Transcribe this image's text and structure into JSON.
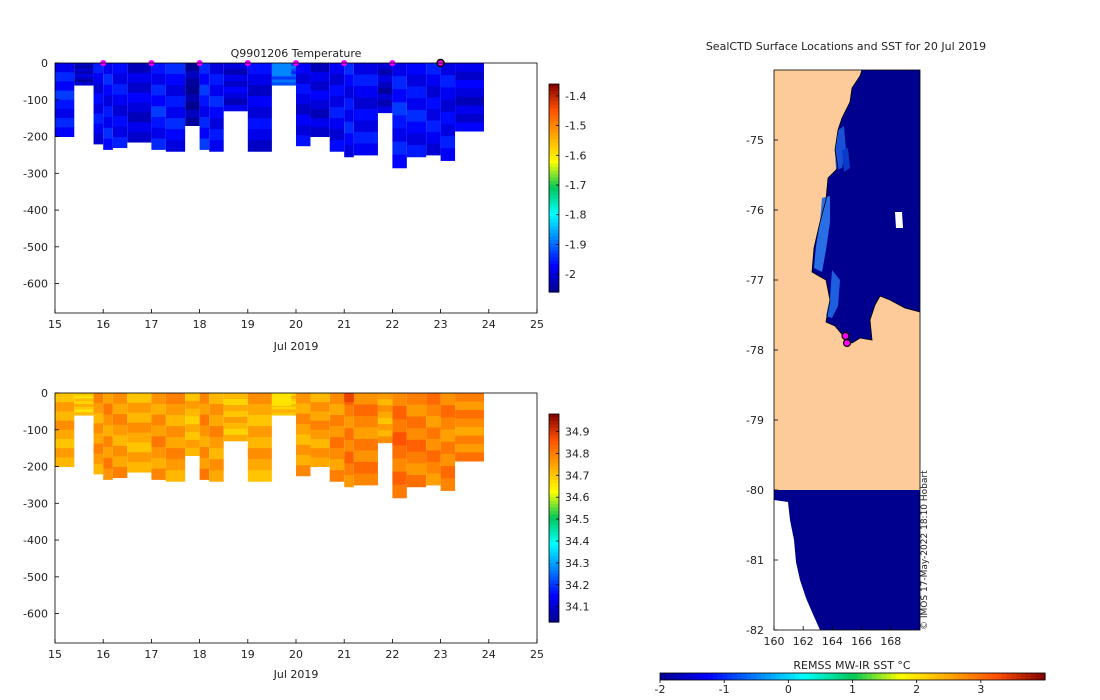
{
  "chart_data": [
    {
      "type": "heatmap",
      "title": "Q9901206  Temperature",
      "xlabel": "Jul 2019",
      "xlim": [
        15,
        25
      ],
      "x_ticks": [
        "15",
        "16",
        "17",
        "18",
        "19",
        "20",
        "21",
        "22",
        "23",
        "24",
        "25"
      ],
      "ylim": [
        -680,
        0
      ],
      "y_ticks": [
        "0",
        "-100",
        "-200",
        "-300",
        "-400",
        "-500",
        "-600"
      ],
      "clim": [
        -2.06,
        -1.36
      ],
      "colorbar_ticks": [
        "-1.4",
        "-1.5",
        "-1.6",
        "-1.7",
        "-1.8",
        "-1.9",
        "-2"
      ],
      "profiles": [
        {
          "t": 15.0,
          "w": 0.4,
          "bottom": -200,
          "v": -1.96
        },
        {
          "t": 15.4,
          "w": 0.4,
          "bottom": -60,
          "v": -2.02
        },
        {
          "t": 15.8,
          "w": 0.2,
          "bottom": -220,
          "v": -1.98
        },
        {
          "t": 16.0,
          "w": 0.2,
          "bottom": -235,
          "v": -1.97
        },
        {
          "t": 16.2,
          "w": 0.3,
          "bottom": -230,
          "v": -1.98
        },
        {
          "t": 16.5,
          "w": 0.5,
          "bottom": -215,
          "v": -2.0
        },
        {
          "t": 17.0,
          "w": 0.3,
          "bottom": -235,
          "v": -1.96
        },
        {
          "t": 17.3,
          "w": 0.4,
          "bottom": -240,
          "v": -1.97
        },
        {
          "t": 17.7,
          "w": 0.3,
          "bottom": -170,
          "v": -2.05
        },
        {
          "t": 18.0,
          "w": 0.2,
          "bottom": -235,
          "v": -1.96
        },
        {
          "t": 18.2,
          "w": 0.3,
          "bottom": -240,
          "v": -1.97
        },
        {
          "t": 18.5,
          "w": 0.5,
          "bottom": -130,
          "v": -2.0
        },
        {
          "t": 19.0,
          "w": 0.5,
          "bottom": -240,
          "v": -1.99
        },
        {
          "t": 19.5,
          "w": 0.5,
          "bottom": -60,
          "v": -1.92
        },
        {
          "t": 20.0,
          "w": 0.3,
          "bottom": -225,
          "v": -1.99
        },
        {
          "t": 20.3,
          "w": 0.4,
          "bottom": -200,
          "v": -2.0
        },
        {
          "t": 20.7,
          "w": 0.3,
          "bottom": -240,
          "v": -1.98
        },
        {
          "t": 21.0,
          "w": 0.2,
          "bottom": -255,
          "v": -1.97
        },
        {
          "t": 21.2,
          "w": 0.5,
          "bottom": -250,
          "v": -1.98
        },
        {
          "t": 21.7,
          "w": 0.3,
          "bottom": -135,
          "v": -2.02
        },
        {
          "t": 22.0,
          "w": 0.3,
          "bottom": -285,
          "v": -1.96
        },
        {
          "t": 22.3,
          "w": 0.4,
          "bottom": -255,
          "v": -1.97
        },
        {
          "t": 22.7,
          "w": 0.3,
          "bottom": -250,
          "v": -1.98
        },
        {
          "t": 23.0,
          "w": 0.3,
          "bottom": -265,
          "v": -1.98
        },
        {
          "t": 23.3,
          "w": 0.6,
          "bottom": -185,
          "v": -2.0
        }
      ],
      "special_cells": [
        {
          "t": 19.5,
          "w": 0.4,
          "top": 0,
          "bottom": -35,
          "v": -1.88
        }
      ],
      "surface_markers": [
        16,
        17,
        18,
        19,
        20,
        21,
        22
      ],
      "current_marker": 23
    },
    {
      "type": "heatmap",
      "title": "",
      "xlabel": "Jul 2019",
      "xlim": [
        15,
        25
      ],
      "x_ticks": [
        "15",
        "16",
        "17",
        "18",
        "19",
        "20",
        "21",
        "22",
        "23",
        "24",
        "25"
      ],
      "ylim": [
        -680,
        0
      ],
      "y_ticks": [
        "0",
        "-100",
        "-200",
        "-300",
        "-400",
        "-500",
        "-600"
      ],
      "clim": [
        34.03,
        34.98
      ],
      "colorbar_ticks": [
        "34.9",
        "34.8",
        "34.7",
        "34.6",
        "34.5",
        "34.4",
        "34.3",
        "34.2",
        "34.1"
      ],
      "profiles": [
        {
          "t": 15.0,
          "w": 0.4,
          "bottom": -200,
          "v": 34.74
        },
        {
          "t": 15.4,
          "w": 0.4,
          "bottom": -60,
          "v": 34.7
        },
        {
          "t": 15.8,
          "w": 0.2,
          "bottom": -220,
          "v": 34.76
        },
        {
          "t": 16.0,
          "w": 0.2,
          "bottom": -235,
          "v": 34.77
        },
        {
          "t": 16.2,
          "w": 0.3,
          "bottom": -230,
          "v": 34.76
        },
        {
          "t": 16.5,
          "w": 0.5,
          "bottom": -215,
          "v": 34.74
        },
        {
          "t": 17.0,
          "w": 0.3,
          "bottom": -235,
          "v": 34.77
        },
        {
          "t": 17.3,
          "w": 0.4,
          "bottom": -240,
          "v": 34.76
        },
        {
          "t": 17.7,
          "w": 0.3,
          "bottom": -170,
          "v": 34.72
        },
        {
          "t": 18.0,
          "w": 0.2,
          "bottom": -235,
          "v": 34.77
        },
        {
          "t": 18.2,
          "w": 0.3,
          "bottom": -240,
          "v": 34.76
        },
        {
          "t": 18.5,
          "w": 0.5,
          "bottom": -130,
          "v": 34.72
        },
        {
          "t": 19.0,
          "w": 0.5,
          "bottom": -240,
          "v": 34.74
        },
        {
          "t": 19.5,
          "w": 0.5,
          "bottom": -60,
          "v": 34.7
        },
        {
          "t": 20.0,
          "w": 0.3,
          "bottom": -225,
          "v": 34.75
        },
        {
          "t": 20.3,
          "w": 0.4,
          "bottom": -200,
          "v": 34.76
        },
        {
          "t": 20.7,
          "w": 0.3,
          "bottom": -240,
          "v": 34.78
        },
        {
          "t": 21.0,
          "w": 0.2,
          "bottom": -255,
          "v": 34.8
        },
        {
          "t": 21.2,
          "w": 0.5,
          "bottom": -250,
          "v": 34.79
        },
        {
          "t": 21.7,
          "w": 0.3,
          "bottom": -135,
          "v": 34.74
        },
        {
          "t": 22.0,
          "w": 0.3,
          "bottom": -285,
          "v": 34.82
        },
        {
          "t": 22.3,
          "w": 0.4,
          "bottom": -255,
          "v": 34.8
        },
        {
          "t": 22.7,
          "w": 0.3,
          "bottom": -250,
          "v": 34.79
        },
        {
          "t": 23.0,
          "w": 0.3,
          "bottom": -265,
          "v": 34.79
        },
        {
          "t": 23.3,
          "w": 0.6,
          "bottom": -185,
          "v": 34.78
        }
      ],
      "special_cells": [
        {
          "t": 19.5,
          "w": 0.4,
          "top": 0,
          "bottom": -35,
          "v": 34.66
        },
        {
          "t": 21.0,
          "w": 0.2,
          "top": 0,
          "bottom": -25,
          "v": 34.88
        }
      ]
    },
    {
      "type": "heatmap",
      "title": "SealCTD Surface Locations and SST for 20 Jul 2019",
      "xlim": [
        160,
        170
      ],
      "x_ticks": [
        "160",
        "162",
        "164",
        "166",
        "168"
      ],
      "ylim": [
        -82,
        -74
      ],
      "y_ticks": [
        "-75",
        "-76",
        "-77",
        "-78",
        "-79",
        "-80",
        "-81",
        "-82"
      ],
      "colorbar_label": "REMSS MW-IR SST °C",
      "clim": [
        -2,
        4
      ],
      "colorbar_ticks": [
        "-2",
        "-1",
        "0",
        "1",
        "2",
        "3"
      ],
      "ice_shelf_boundary_lat": -80,
      "seal_locations": [
        {
          "lon": 164.9,
          "lat": -77.8
        },
        {
          "lon": 165.0,
          "lat": -77.9
        }
      ],
      "sst_fill_value": -1.8,
      "credit": "© IMOS 17-May-2022 18:10 Hobart"
    }
  ],
  "colors": {
    "land": "#fdcb99",
    "sst_cold": "#00008f",
    "marker": "#ff00ff"
  }
}
